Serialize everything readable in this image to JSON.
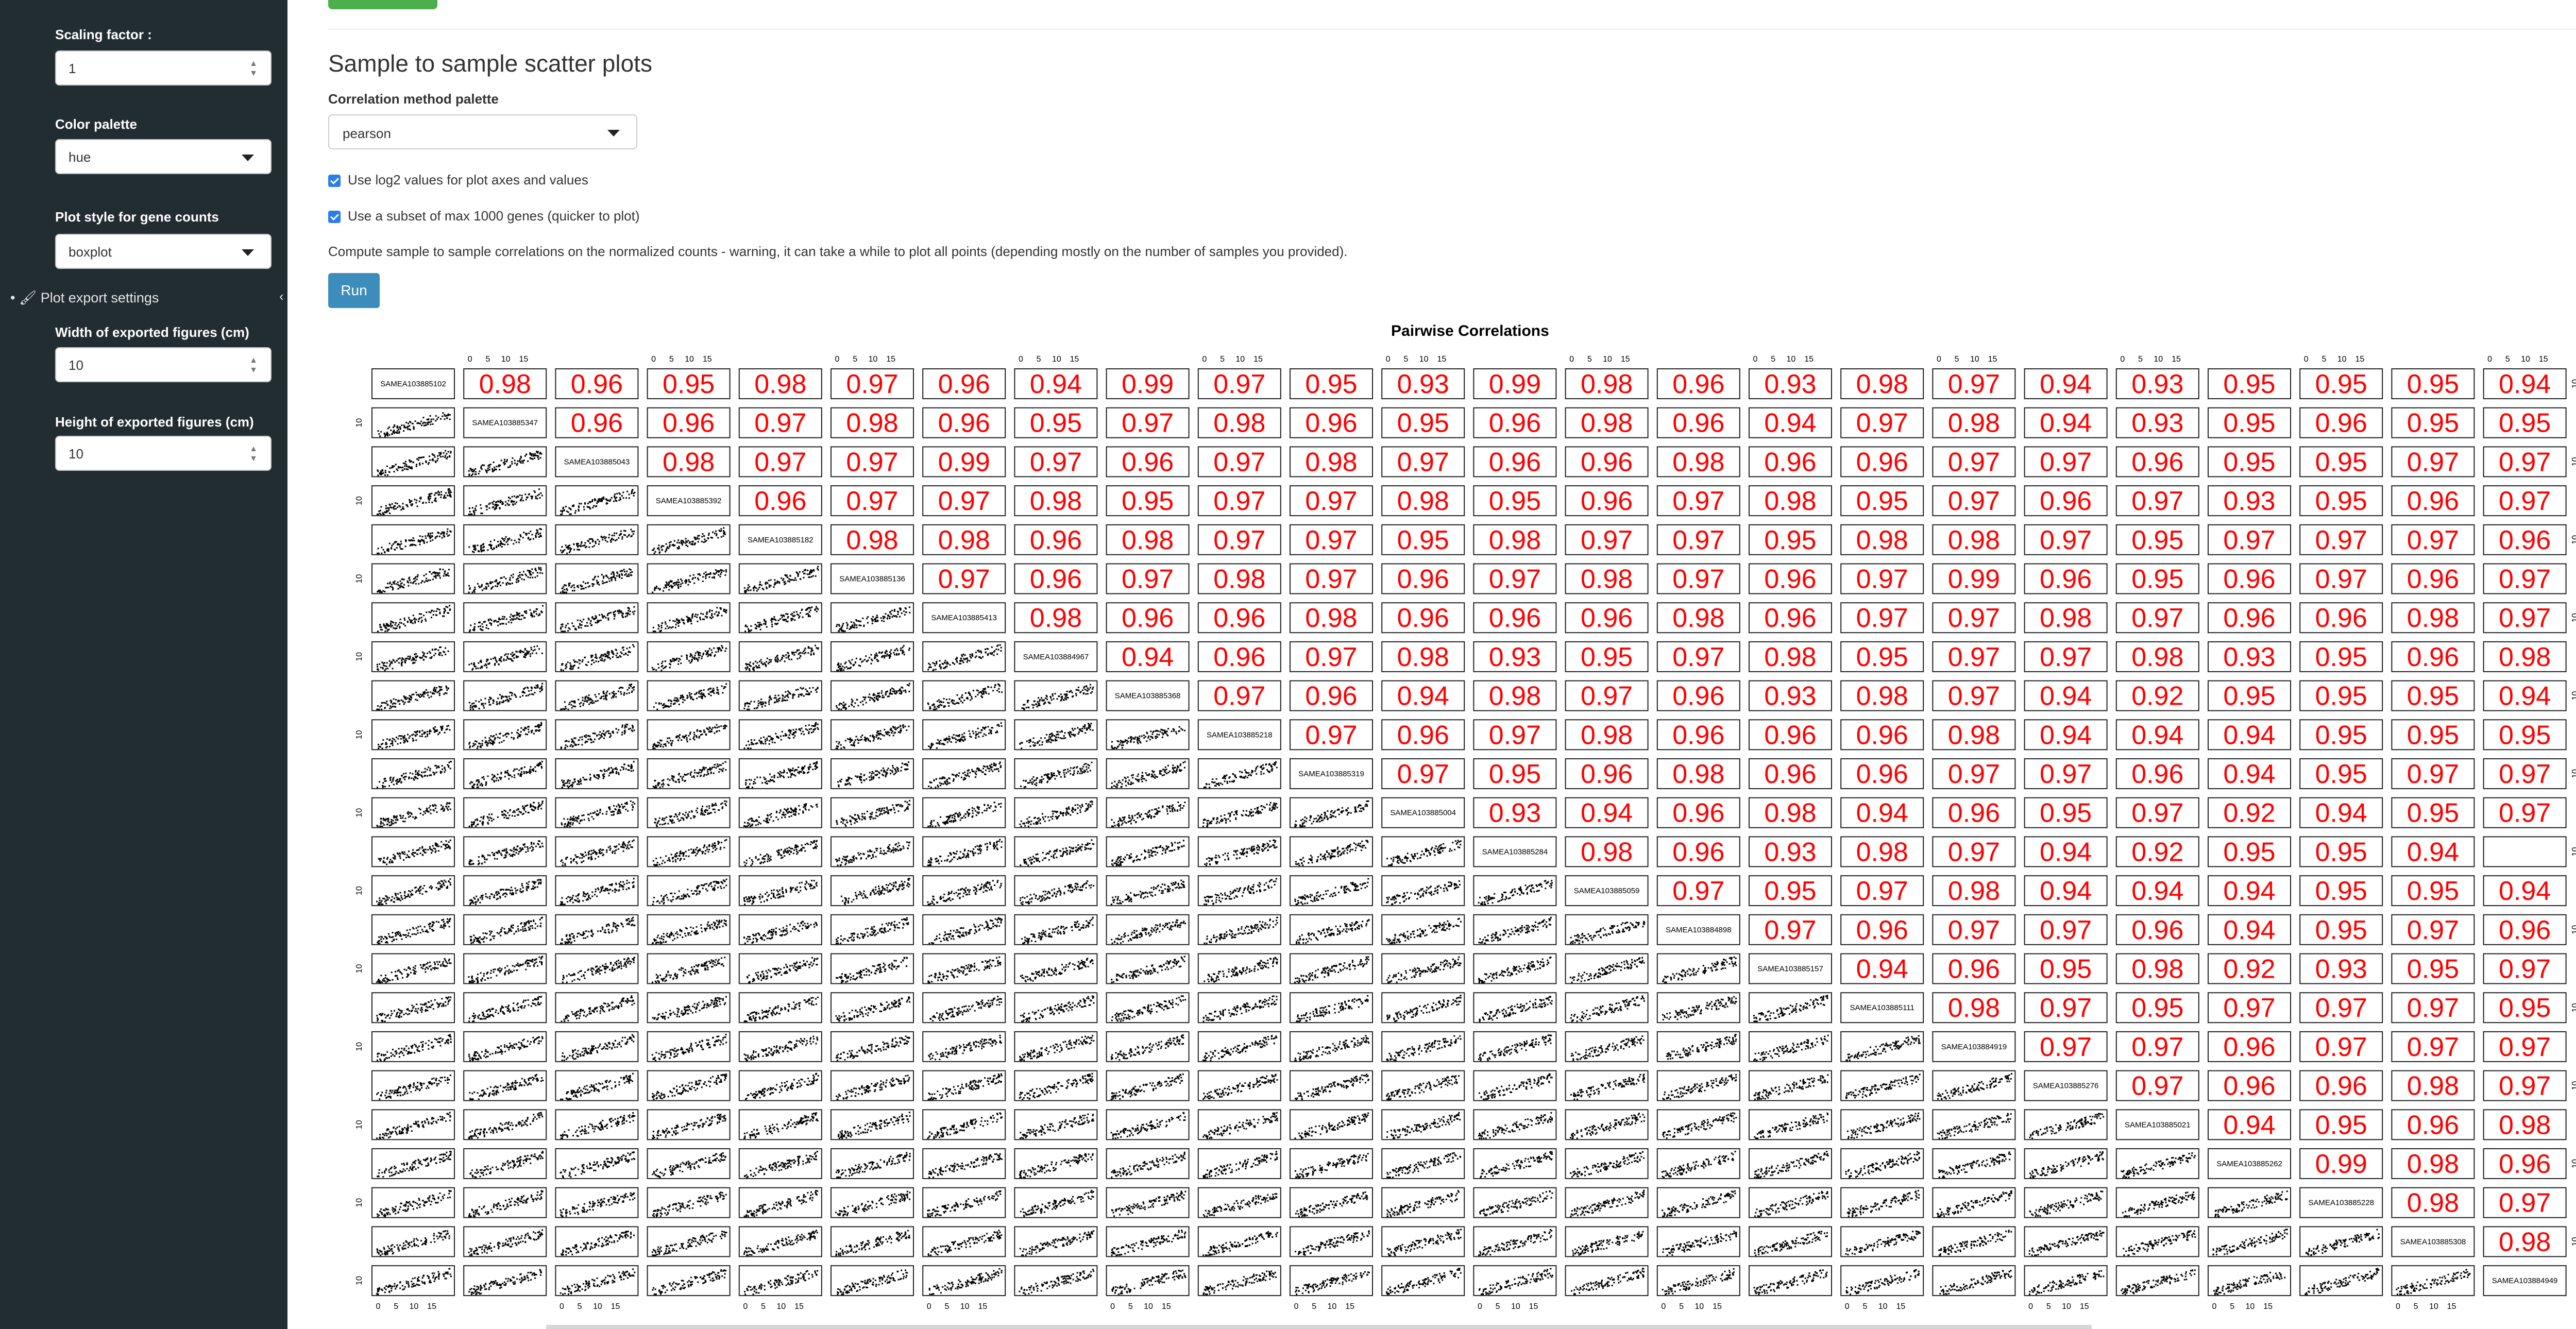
{
  "sidebar": {
    "scaling_label": "Scaling factor :",
    "scaling_value": "1",
    "palette_label": "Color palette",
    "palette_value": "hue",
    "plotstyle_label": "Plot style for gene counts",
    "plotstyle_value": "boxplot",
    "export_label": "Plot export settings",
    "width_label": "Width of exported figures (cm)",
    "width_value": "10",
    "height_label": "Height of exported figures (cm)",
    "height_value": "10",
    "icons": {
      "export": "paintbrush-icon",
      "collapse": "chevron-left-icon",
      "spinner": "spinner-arrows-icon",
      "select": "caret-down-icon"
    }
  },
  "main": {
    "title": "Sample to sample scatter plots",
    "method_label": "Correlation method palette",
    "method_value": "pearson",
    "checkbox_log2": "Use log2 values for plot axes and values",
    "checkbox_subset": "Use a subset of max 1000 genes (quicker to plot)",
    "checkbox_log2_checked": true,
    "checkbox_subset_checked": true,
    "note": "Compute sample to sample correlations on the normalized counts - warning, it can take a while to plot all points (depending mostly on the number of samples you provided).",
    "run_label": "Run"
  },
  "colors": {
    "sidebar": "#222d32",
    "run_button": "#3c8dbc",
    "correlation_text": "#ff0000",
    "checkbox": "#2b7de9"
  },
  "chart_data": {
    "type": "scatter",
    "title": "Pairwise Correlations",
    "samples": [
      "SAMEA103885102",
      "SAMEA103885347",
      "SAMEA103885043",
      "SAMEA103885392",
      "SAMEA103885182",
      "SAMEA103885136",
      "SAMEA103885413",
      "SAMEA103884967",
      "SAMEA103885368",
      "SAMEA103885218",
      "SAMEA103885319",
      "SAMEA103885004",
      "SAMEA103885284",
      "SAMEA103885059",
      "SAMEA103884898",
      "SAMEA103885157",
      "SAMEA103885111",
      "SAMEA103884919",
      "SAMEA103885276",
      "SAMEA103885021",
      "SAMEA103885262",
      "SAMEA103885228",
      "SAMEA103885308",
      "SAMEA103884949"
    ],
    "axis_ticks": [
      "0",
      "5",
      "10",
      "15"
    ],
    "side_tick": "10",
    "correlation_rows": [
      [
        "0.98",
        "0.96",
        "0.95",
        "0.98",
        "0.97",
        "0.96",
        "0.94",
        "0.99",
        "0.97",
        "0.95",
        "0.93",
        "0.99",
        "0.98",
        "0.96",
        "0.93",
        "0.98",
        "0.97",
        "0.94",
        "0.93",
        "0.95",
        "0.95",
        "0.95",
        "0.94"
      ],
      [
        "0.96",
        "0.96",
        "0.97",
        "0.98",
        "0.96",
        "0.95",
        "0.97",
        "0.98",
        "0.96",
        "0.95",
        "0.96",
        "0.98",
        "0.96",
        "0.94",
        "0.97",
        "0.98",
        "0.94",
        "0.93",
        "0.95",
        "0.96",
        "0.95",
        "0.95"
      ],
      [
        "0.98",
        "0.97",
        "0.97",
        "0.99",
        "0.97",
        "0.96",
        "0.97",
        "0.98",
        "0.97",
        "0.96",
        "0.96",
        "0.98",
        "0.96",
        "0.96",
        "0.97",
        "0.97",
        "0.96",
        "0.95",
        "0.95",
        "0.97",
        "0.97"
      ],
      [
        "0.96",
        "0.97",
        "0.97",
        "0.98",
        "0.95",
        "0.97",
        "0.97",
        "0.98",
        "0.95",
        "0.96",
        "0.97",
        "0.98",
        "0.95",
        "0.97",
        "0.96",
        "0.97",
        "0.93",
        "0.95",
        "0.96",
        "0.97"
      ],
      [
        "0.98",
        "0.98",
        "0.96",
        "0.98",
        "0.97",
        "0.97",
        "0.95",
        "0.98",
        "0.97",
        "0.97",
        "0.95",
        "0.98",
        "0.98",
        "0.97",
        "0.95",
        "0.97",
        "0.97",
        "0.97",
        "0.96"
      ],
      [
        "0.97",
        "0.96",
        "0.97",
        "0.98",
        "0.97",
        "0.96",
        "0.97",
        "0.98",
        "0.97",
        "0.96",
        "0.97",
        "0.99",
        "0.96",
        "0.95",
        "0.96",
        "0.97",
        "0.96",
        "0.97"
      ],
      [
        "0.98",
        "0.96",
        "0.96",
        "0.98",
        "0.96",
        "0.96",
        "0.96",
        "0.98",
        "0.96",
        "0.97",
        "0.97",
        "0.98",
        "0.97",
        "0.96",
        "0.96",
        "0.98",
        "0.97"
      ],
      [
        "0.94",
        "0.96",
        "0.97",
        "0.98",
        "0.93",
        "0.95",
        "0.97",
        "0.98",
        "0.95",
        "0.97",
        "0.97",
        "0.98",
        "0.93",
        "0.95",
        "0.96",
        "0.98"
      ],
      [
        "0.97",
        "0.96",
        "0.94",
        "0.98",
        "0.97",
        "0.96",
        "0.93",
        "0.98",
        "0.97",
        "0.94",
        "0.92",
        "0.95",
        "0.95",
        "0.95",
        "0.94"
      ],
      [
        "0.97",
        "0.96",
        "0.97",
        "0.98",
        "0.96",
        "0.96",
        "0.96",
        "0.98",
        "0.94",
        "0.94",
        "0.94",
        "0.95",
        "0.95",
        "0.95"
      ],
      [
        "0.97",
        "0.95",
        "0.96",
        "0.98",
        "0.96",
        "0.96",
        "0.97",
        "0.97",
        "0.96",
        "0.94",
        "0.95",
        "0.97",
        "0.97"
      ],
      [
        "0.93",
        "0.94",
        "0.96",
        "0.98",
        "0.94",
        "0.96",
        "0.95",
        "0.97",
        "0.92",
        "0.94",
        "0.95",
        "0.97"
      ],
      [
        "0.98",
        "0.96",
        "0.93",
        "0.98",
        "0.97",
        "0.94",
        "0.92",
        "0.95",
        "0.95",
        "0.94"
      ],
      [
        "0.97",
        "0.95",
        "0.97",
        "0.98",
        "0.94",
        "0.94",
        "0.94",
        "0.95",
        "0.95",
        "0.94"
      ],
      [
        "0.97",
        "0.96",
        "0.97",
        "0.97",
        "0.96",
        "0.94",
        "0.95",
        "0.97",
        "0.96"
      ],
      [
        "0.94",
        "0.96",
        "0.95",
        "0.98",
        "0.92",
        "0.93",
        "0.95",
        "0.97"
      ],
      [
        "0.98",
        "0.97",
        "0.95",
        "0.97",
        "0.97",
        "0.97",
        "0.95"
      ],
      [
        "0.97",
        "0.97",
        "0.96",
        "0.97",
        "0.97",
        "0.97"
      ],
      [
        "0.97",
        "0.96",
        "0.96",
        "0.98",
        "0.97"
      ],
      [
        "0.94",
        "0.95",
        "0.96",
        "0.98"
      ],
      [
        "0.99",
        "0.98",
        "0.96"
      ],
      [
        "0.98",
        "0.97"
      ],
      [
        "0.98"
      ]
    ]
  }
}
